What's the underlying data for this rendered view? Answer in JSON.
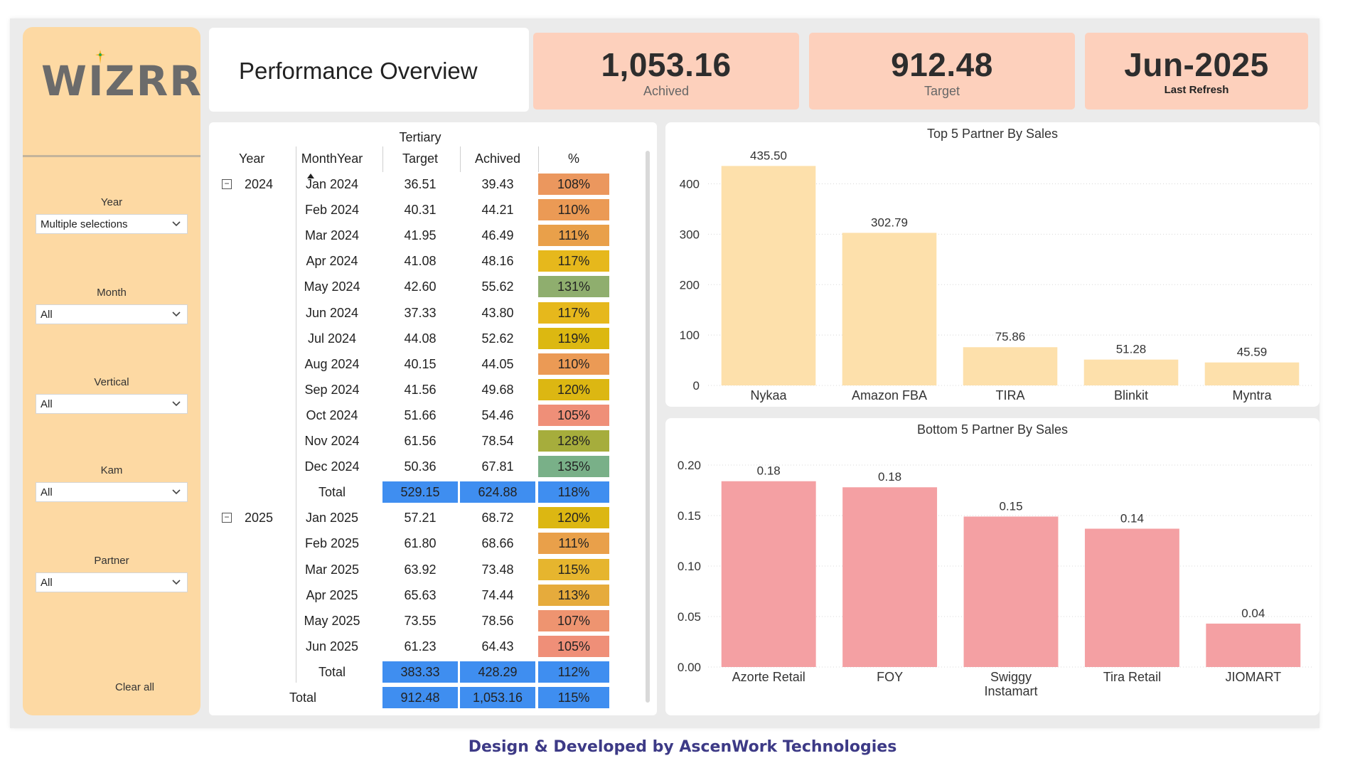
{
  "brand": {
    "logo_text": "WIZRR"
  },
  "page_title": "Performance Overview",
  "kpis": [
    {
      "value": "1,053.16",
      "label": "Achived"
    },
    {
      "value": "912.48",
      "label": "Target"
    },
    {
      "value": "Jun-2025",
      "label": "Last Refresh"
    }
  ],
  "slicers": [
    {
      "label": "Year",
      "value": "Multiple selections"
    },
    {
      "label": "Month",
      "value": "All"
    },
    {
      "label": "Vertical",
      "value": "All"
    },
    {
      "label": "Kam",
      "value": "All"
    },
    {
      "label": "Partner",
      "value": "All"
    }
  ],
  "clear_all": "Clear all",
  "matrix": {
    "group_header": "Tertiary",
    "headers": {
      "year": "Year",
      "month": "MonthYear",
      "target": "Target",
      "achived": "Achived",
      "pct": "%"
    },
    "groups": [
      {
        "year": "2024",
        "rows": [
          {
            "month": "Jan 2024",
            "target": "36.51",
            "achived": "39.43",
            "pct": "108%"
          },
          {
            "month": "Feb 2024",
            "target": "40.31",
            "achived": "44.21",
            "pct": "110%"
          },
          {
            "month": "Mar 2024",
            "target": "41.95",
            "achived": "46.49",
            "pct": "111%"
          },
          {
            "month": "Apr 2024",
            "target": "41.08",
            "achived": "48.16",
            "pct": "117%"
          },
          {
            "month": "May 2024",
            "target": "42.60",
            "achived": "55.62",
            "pct": "131%"
          },
          {
            "month": "Jun 2024",
            "target": "37.33",
            "achived": "43.80",
            "pct": "117%"
          },
          {
            "month": "Jul 2024",
            "target": "44.08",
            "achived": "52.62",
            "pct": "119%"
          },
          {
            "month": "Aug 2024",
            "target": "40.15",
            "achived": "44.05",
            "pct": "110%"
          },
          {
            "month": "Sep 2024",
            "target": "41.56",
            "achived": "49.68",
            "pct": "120%"
          },
          {
            "month": "Oct 2024",
            "target": "51.66",
            "achived": "54.46",
            "pct": "105%"
          },
          {
            "month": "Nov 2024",
            "target": "61.56",
            "achived": "78.54",
            "pct": "128%"
          },
          {
            "month": "Dec 2024",
            "target": "50.36",
            "achived": "67.81",
            "pct": "135%"
          }
        ],
        "total": {
          "label": "Total",
          "target": "529.15",
          "achived": "624.88",
          "pct": "118%"
        }
      },
      {
        "year": "2025",
        "rows": [
          {
            "month": "Jan 2025",
            "target": "57.21",
            "achived": "68.72",
            "pct": "120%"
          },
          {
            "month": "Feb 2025",
            "target": "61.80",
            "achived": "68.66",
            "pct": "111%"
          },
          {
            "month": "Mar 2025",
            "target": "63.92",
            "achived": "73.48",
            "pct": "115%"
          },
          {
            "month": "Apr 2025",
            "target": "65.63",
            "achived": "74.44",
            "pct": "113%"
          },
          {
            "month": "May 2025",
            "target": "73.55",
            "achived": "78.56",
            "pct": "107%"
          },
          {
            "month": "Jun 2025",
            "target": "61.23",
            "achived": "64.43",
            "pct": "105%"
          }
        ],
        "total": {
          "label": "Total",
          "target": "383.33",
          "achived": "428.29",
          "pct": "112%"
        }
      }
    ],
    "grand_total": {
      "label": "Total",
      "target": "912.48",
      "achived": "1,053.16",
      "pct": "115%"
    }
  },
  "colors": {
    "total_cell": "#3f8ef0",
    "pct_105": "#ef8f78",
    "pct_107": "#ee9470",
    "pct_108": "#eb975e",
    "pct_110": "#eb9a55",
    "pct_111": "#e9a04a",
    "pct_112": "#e7a73f",
    "pct_113": "#e6ab3c",
    "pct_115": "#e6b52e",
    "pct_117": "#e6b81c",
    "pct_119": "#dcb811",
    "pct_120": "#dcb712",
    "pct_128": "#a6ad3c",
    "pct_131": "#8fae6e",
    "pct_135": "#79b088",
    "top_bar": "#fde0ab",
    "bottom_bar": "#f4a0a3"
  },
  "chart_data": [
    {
      "type": "bar",
      "title": "Top 5 Partner By Sales",
      "categories": [
        "Nykaa",
        "Amazon FBA",
        "TIRA",
        "Blinkit",
        "Myntra"
      ],
      "values": [
        435.5,
        302.79,
        75.86,
        51.28,
        45.59
      ],
      "labels": [
        "435.50",
        "302.79",
        "75.86",
        "51.28",
        "45.59"
      ],
      "yticks": [
        "0",
        "100",
        "200",
        "300",
        "400"
      ],
      "ylim": [
        0,
        460
      ],
      "grid": true
    },
    {
      "type": "bar",
      "title": "Bottom 5 Partner By Sales",
      "categories": [
        [
          "Azorte Retail"
        ],
        [
          "FOY"
        ],
        [
          "Swiggy",
          "Instamart"
        ],
        [
          "Tira Retail"
        ],
        [
          "JIOMART"
        ]
      ],
      "values": [
        0.184,
        0.178,
        0.149,
        0.137,
        0.043
      ],
      "labels": [
        "0.18",
        "0.18",
        "0.15",
        "0.14",
        "0.04"
      ],
      "yticks": [
        "0.00",
        "0.05",
        "0.10",
        "0.15",
        "0.20"
      ],
      "ylim": [
        0,
        0.2
      ],
      "grid": true
    }
  ],
  "footer": "Design & Developed by AscenWork Technologies"
}
